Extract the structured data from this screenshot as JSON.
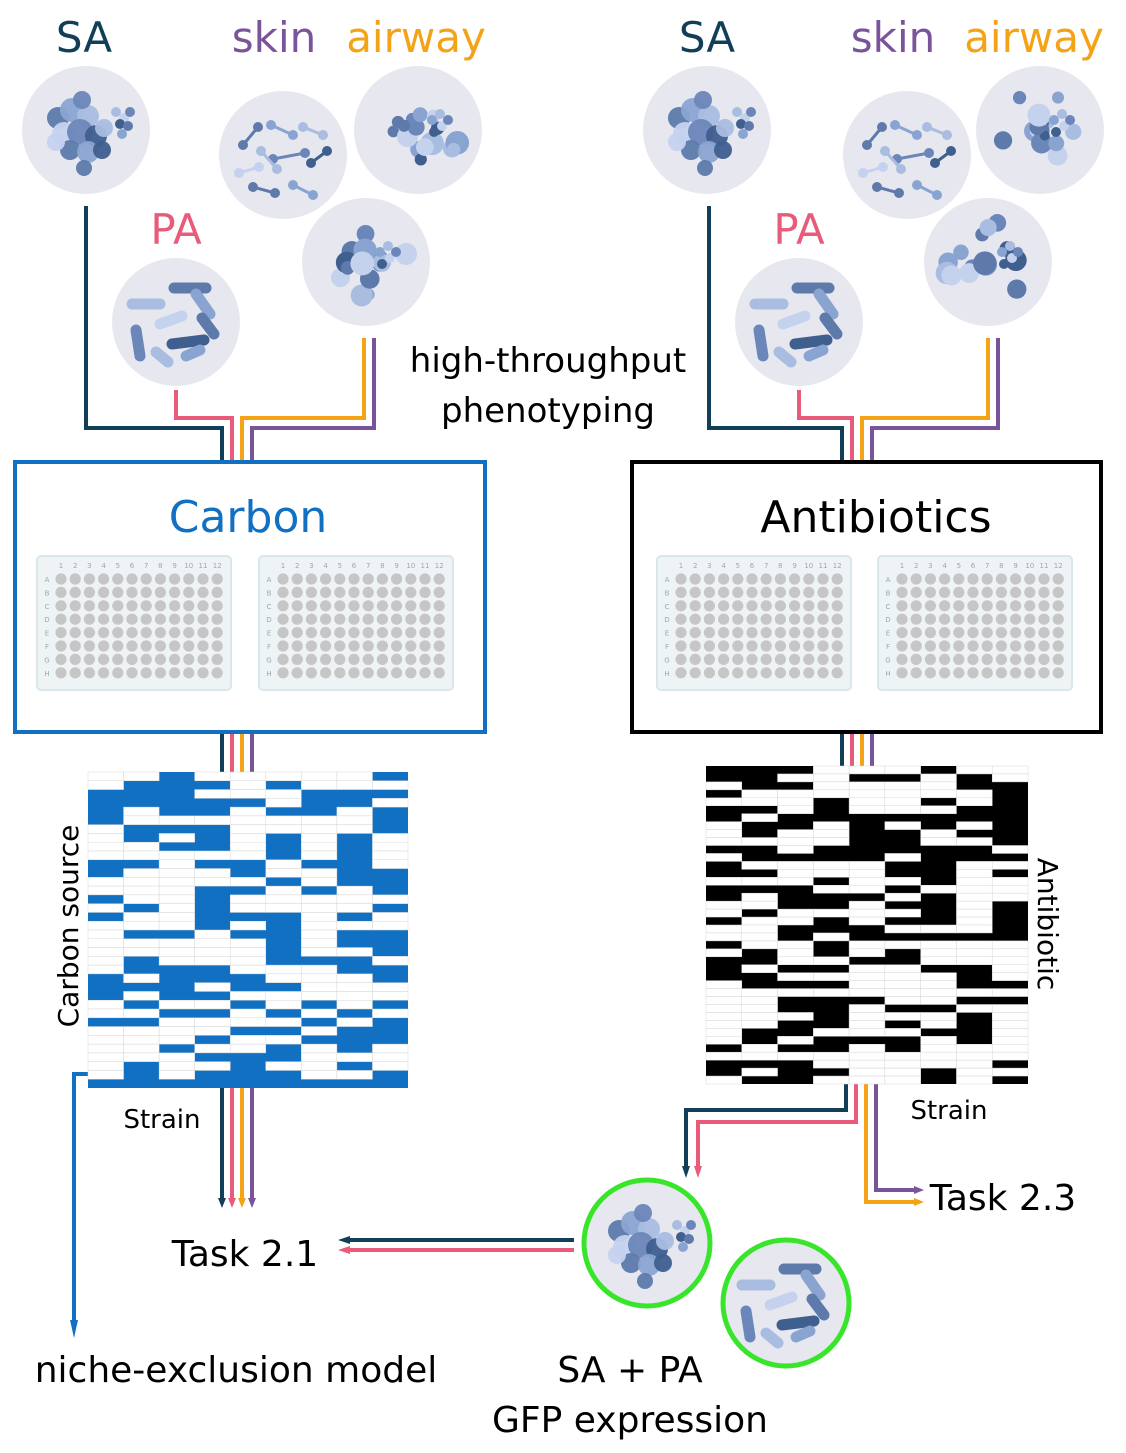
{
  "colors": {
    "sa": "#113f58",
    "pa": "#e95b7a",
    "skin": "#7a549a",
    "airway": "#f5a316",
    "carbon": "#1170c2",
    "antibiotic": "#000000",
    "gfp_ring": "#39e52a",
    "dish_bg": "#e7e7f0",
    "well": "#c6c6c6"
  },
  "labels": {
    "sa": "SA",
    "skin": "skin",
    "airway": "airway",
    "pa": "PA",
    "htp_line1": "high-throughput",
    "htp_line2": "phenotyping",
    "carbon_box": "Carbon",
    "antibiotics_box": "Antibiotics",
    "carbon_axis": "Carbon source",
    "antibiotic_axis": "Antibiotic",
    "strain": "Strain",
    "task21": "Task 2.1",
    "task23": "Task 2.3",
    "niche_model": "niche-exclusion model",
    "sa_pa_line1": "SA + PA",
    "sa_pa_line2": "GFP expression"
  },
  "plate": {
    "rows": [
      "A",
      "B",
      "C",
      "D",
      "E",
      "F",
      "G",
      "H"
    ],
    "cols": [
      "1",
      "2",
      "3",
      "4",
      "5",
      "6",
      "7",
      "8",
      "9",
      "10",
      "11",
      "12"
    ]
  }
}
